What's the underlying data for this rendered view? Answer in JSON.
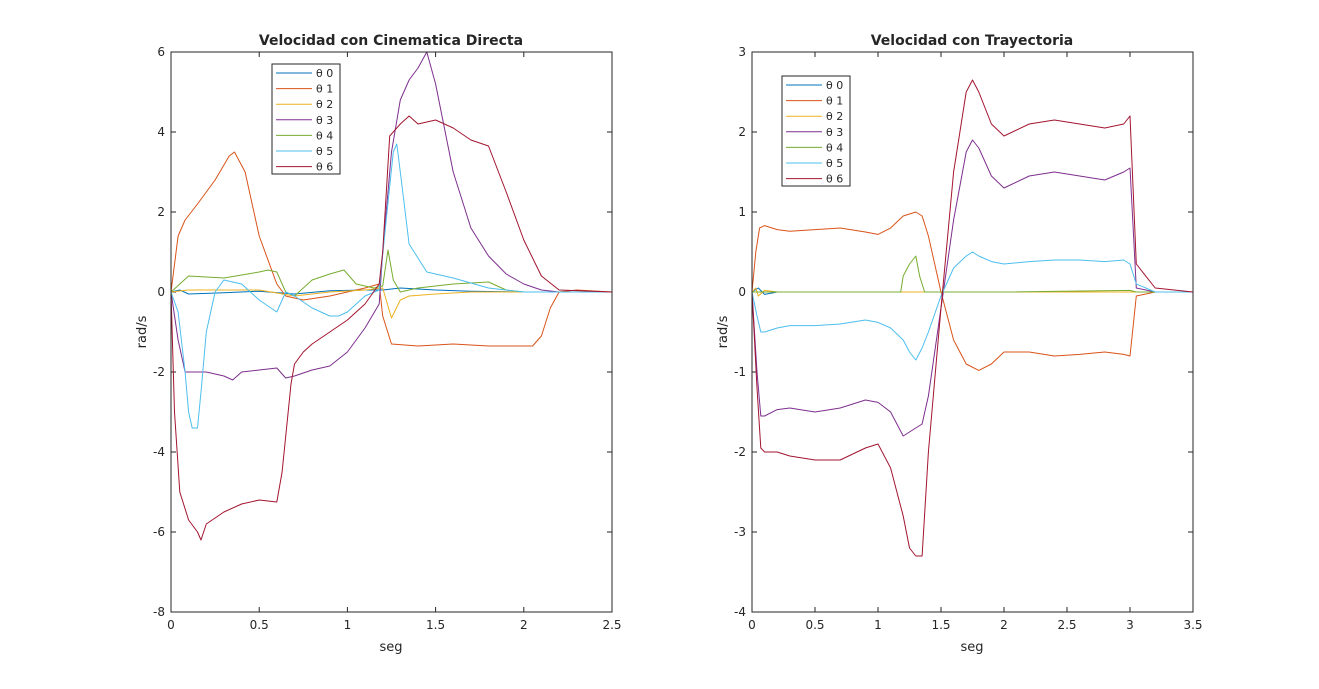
{
  "colors": {
    "theta0": "#0072BD",
    "theta1": "#D95319",
    "theta2": "#EDB120",
    "theta3": "#7E2F8E",
    "theta4": "#77AC30",
    "theta5": "#4DBEEE",
    "theta6": "#A2142F",
    "axis": "#262626",
    "background": "#ffffff"
  },
  "chart_data": [
    {
      "type": "line",
      "title": "Velocidad con Cinematica Directa",
      "xlabel": "seg",
      "ylabel": "rad/s",
      "xlim": [
        0,
        2.5
      ],
      "ylim": [
        -8,
        6
      ],
      "xticks": [
        0,
        0.5,
        1,
        1.5,
        2,
        2.5
      ],
      "xtick_labels": [
        "0",
        "0.5",
        "1",
        "1.5",
        "2",
        "2.5"
      ],
      "yticks": [
        -8,
        -6,
        -4,
        -2,
        0,
        2,
        4,
        6
      ],
      "ytick_labels": [
        "-8",
        "-6",
        "-4",
        "-2",
        "0",
        "2",
        "4",
        "6"
      ],
      "grid": false,
      "legend_placement": "upper-left-center",
      "series": [
        {
          "name": "θ 0",
          "color": "#0072BD",
          "x": [
            0,
            0.05,
            0.1,
            0.3,
            0.5,
            0.7,
            0.9,
            1.1,
            1.2,
            1.3,
            1.5,
            1.7,
            2.0,
            2.5
          ],
          "y": [
            0,
            0.05,
            -0.05,
            -0.02,
            0.02,
            -0.05,
            0.03,
            0.05,
            0.05,
            0.1,
            0.05,
            0.02,
            0,
            0
          ]
        },
        {
          "name": "θ 1",
          "color": "#D95319",
          "x": [
            0,
            0.04,
            0.08,
            0.15,
            0.25,
            0.33,
            0.36,
            0.42,
            0.5,
            0.6,
            0.65,
            0.75,
            0.9,
            1.1,
            1.18,
            1.2,
            1.25,
            1.4,
            1.6,
            1.8,
            2.0,
            2.05,
            2.1,
            2.15,
            2.2,
            2.3,
            2.5
          ],
          "y": [
            0,
            1.4,
            1.8,
            2.2,
            2.8,
            3.4,
            3.5,
            3.0,
            1.4,
            0.2,
            -0.1,
            -0.2,
            -0.1,
            0.1,
            0.2,
            -0.6,
            -1.3,
            -1.35,
            -1.3,
            -1.35,
            -1.35,
            -1.35,
            -1.1,
            -0.4,
            0,
            0.05,
            0
          ]
        },
        {
          "name": "θ 2",
          "color": "#EDB120",
          "x": [
            0,
            0.1,
            0.3,
            0.5,
            0.7,
            0.9,
            1.1,
            1.2,
            1.25,
            1.3,
            1.35,
            1.5,
            1.7,
            2.0,
            2.5
          ],
          "y": [
            0,
            0.05,
            0.05,
            0.05,
            -0.1,
            0.0,
            0.05,
            0.1,
            -0.65,
            -0.2,
            -0.1,
            -0.05,
            0,
            0,
            0
          ]
        },
        {
          "name": "θ 3",
          "color": "#7E2F8E",
          "x": [
            0,
            0.04,
            0.08,
            0.2,
            0.3,
            0.35,
            0.4,
            0.5,
            0.6,
            0.65,
            0.7,
            0.8,
            0.9,
            1.0,
            1.1,
            1.18,
            1.2,
            1.25,
            1.3,
            1.35,
            1.4,
            1.45,
            1.5,
            1.6,
            1.7,
            1.8,
            1.9,
            2.0,
            2.1,
            2.2,
            2.5
          ],
          "y": [
            0,
            -1.2,
            -2.0,
            -2.0,
            -2.1,
            -2.2,
            -2.0,
            -1.95,
            -1.9,
            -2.15,
            -2.1,
            -1.95,
            -1.85,
            -1.5,
            -0.9,
            -0.3,
            1.0,
            3.5,
            4.8,
            5.3,
            5.6,
            6.0,
            5.2,
            3.0,
            1.6,
            0.9,
            0.45,
            0.2,
            0.05,
            0,
            0
          ]
        },
        {
          "name": "θ 4",
          "color": "#77AC30",
          "x": [
            0,
            0.05,
            0.1,
            0.3,
            0.5,
            0.55,
            0.6,
            0.65,
            0.7,
            0.8,
            0.9,
            0.98,
            1.05,
            1.15,
            1.2,
            1.23,
            1.26,
            1.3,
            1.4,
            1.6,
            1.8,
            1.9,
            2.0,
            2.5
          ],
          "y": [
            0,
            0.2,
            0.4,
            0.35,
            0.5,
            0.55,
            0.5,
            0.0,
            -0.1,
            0.3,
            0.45,
            0.55,
            0.2,
            0.1,
            0.15,
            1.05,
            0.3,
            0.0,
            0.1,
            0.2,
            0.25,
            0.05,
            0,
            0
          ]
        },
        {
          "name": "θ 5",
          "color": "#4DBEEE",
          "x": [
            0,
            0.04,
            0.08,
            0.1,
            0.12,
            0.15,
            0.17,
            0.2,
            0.25,
            0.3,
            0.4,
            0.5,
            0.6,
            0.65,
            0.7,
            0.8,
            0.9,
            0.95,
            1.0,
            1.05,
            1.1,
            1.18,
            1.22,
            1.26,
            1.28,
            1.3,
            1.35,
            1.45,
            1.6,
            1.8,
            2.0,
            2.5
          ],
          "y": [
            0,
            -0.5,
            -2.0,
            -3.0,
            -3.4,
            -3.4,
            -2.5,
            -1.0,
            0.0,
            0.3,
            0.2,
            -0.2,
            -0.5,
            0.0,
            -0.1,
            -0.4,
            -0.6,
            -0.6,
            -0.5,
            -0.3,
            -0.1,
            0.05,
            1.8,
            3.5,
            3.7,
            3.0,
            1.2,
            0.5,
            0.35,
            0.1,
            0,
            0
          ]
        },
        {
          "name": "θ 6",
          "color": "#A2142F",
          "x": [
            0,
            0.02,
            0.05,
            0.1,
            0.15,
            0.17,
            0.2,
            0.3,
            0.4,
            0.5,
            0.6,
            0.63,
            0.68,
            0.7,
            0.75,
            0.8,
            0.9,
            1.0,
            1.1,
            1.18,
            1.2,
            1.24,
            1.3,
            1.35,
            1.4,
            1.5,
            1.6,
            1.7,
            1.8,
            1.9,
            2.0,
            2.1,
            2.2,
            2.5
          ],
          "y": [
            0,
            -3.0,
            -5.0,
            -5.7,
            -6.0,
            -6.2,
            -5.8,
            -5.5,
            -5.3,
            -5.2,
            -5.25,
            -4.5,
            -2.3,
            -1.8,
            -1.5,
            -1.3,
            -1.0,
            -0.7,
            -0.3,
            0.2,
            1.0,
            3.9,
            4.2,
            4.4,
            4.2,
            4.3,
            4.1,
            3.8,
            3.65,
            2.5,
            1.3,
            0.4,
            0.05,
            0
          ]
        }
      ]
    },
    {
      "type": "line",
      "title": "Velocidad con Trayectoria",
      "xlabel": "seg",
      "ylabel": "rad/s",
      "xlim": [
        0,
        3.5
      ],
      "ylim": [
        -4,
        3
      ],
      "xticks": [
        0,
        0.5,
        1,
        1.5,
        2,
        2.5,
        3,
        3.5
      ],
      "xtick_labels": [
        "0",
        "0.5",
        "1",
        "1.5",
        "2",
        "2.5",
        "3",
        "3.5"
      ],
      "yticks": [
        -4,
        -3,
        -2,
        -1,
        0,
        1,
        2,
        3
      ],
      "ytick_labels": [
        "-4",
        "-3",
        "-2",
        "-1",
        "0",
        "1",
        "2",
        "3"
      ],
      "grid": false,
      "legend_placement": "upper-left",
      "series": [
        {
          "name": "θ 0",
          "color": "#0072BD",
          "x": [
            0,
            0.05,
            0.1,
            0.2,
            1.0,
            2.0,
            3.0,
            3.5
          ],
          "y": [
            0,
            0.05,
            -0.03,
            0,
            0,
            0,
            0,
            0
          ]
        },
        {
          "name": "θ 1",
          "color": "#D95319",
          "x": [
            0,
            0.03,
            0.06,
            0.1,
            0.2,
            0.3,
            0.5,
            0.7,
            0.9,
            1.0,
            1.1,
            1.2,
            1.3,
            1.35,
            1.4,
            1.5,
            1.6,
            1.7,
            1.8,
            1.9,
            2.0,
            2.2,
            2.4,
            2.6,
            2.8,
            2.95,
            3.0,
            3.05,
            3.2,
            3.5
          ],
          "y": [
            0,
            0.5,
            0.8,
            0.83,
            0.78,
            0.76,
            0.78,
            0.8,
            0.75,
            0.72,
            0.8,
            0.95,
            1.0,
            0.95,
            0.7,
            0.0,
            -0.6,
            -0.9,
            -0.98,
            -0.9,
            -0.75,
            -0.75,
            -0.8,
            -0.78,
            -0.75,
            -0.78,
            -0.8,
            -0.05,
            0,
            0
          ]
        },
        {
          "name": "θ 2",
          "color": "#EDB120",
          "x": [
            0,
            0.03,
            0.05,
            0.1,
            0.2,
            1.0,
            2.0,
            3.0,
            3.5
          ],
          "y": [
            0,
            0.05,
            -0.05,
            0.02,
            0,
            0,
            0,
            0,
            0
          ]
        },
        {
          "name": "θ 3",
          "color": "#7E2F8E",
          "x": [
            0,
            0.04,
            0.07,
            0.1,
            0.2,
            0.3,
            0.5,
            0.7,
            0.9,
            1.0,
            1.1,
            1.2,
            1.25,
            1.3,
            1.35,
            1.4,
            1.5,
            1.6,
            1.7,
            1.75,
            1.8,
            1.9,
            2.0,
            2.2,
            2.4,
            2.6,
            2.8,
            2.95,
            3.0,
            3.05,
            3.2,
            3.5
          ],
          "y": [
            0,
            -1.0,
            -1.55,
            -1.55,
            -1.47,
            -1.45,
            -1.5,
            -1.45,
            -1.35,
            -1.38,
            -1.5,
            -1.8,
            -1.75,
            -1.7,
            -1.65,
            -1.3,
            -0.2,
            0.9,
            1.75,
            1.9,
            1.8,
            1.45,
            1.3,
            1.45,
            1.5,
            1.45,
            1.4,
            1.5,
            1.55,
            0.05,
            0,
            0
          ]
        },
        {
          "name": "θ 4",
          "color": "#77AC30",
          "x": [
            0,
            0.1,
            1.0,
            1.18,
            1.2,
            1.25,
            1.3,
            1.33,
            1.37,
            1.5,
            2.0,
            3.0,
            3.05,
            3.5
          ],
          "y": [
            0,
            0,
            0,
            0,
            0.2,
            0.35,
            0.45,
            0.2,
            0.0,
            0,
            0,
            0.02,
            0,
            0
          ]
        },
        {
          "name": "θ 5",
          "color": "#4DBEEE",
          "x": [
            0,
            0.04,
            0.07,
            0.1,
            0.2,
            0.3,
            0.5,
            0.7,
            0.9,
            1.0,
            1.1,
            1.2,
            1.25,
            1.3,
            1.35,
            1.4,
            1.5,
            1.6,
            1.7,
            1.75,
            1.8,
            1.9,
            2.0,
            2.2,
            2.4,
            2.6,
            2.8,
            2.95,
            3.0,
            3.05,
            3.2,
            3.5
          ],
          "y": [
            0,
            -0.3,
            -0.5,
            -0.5,
            -0.45,
            -0.42,
            -0.42,
            -0.4,
            -0.35,
            -0.38,
            -0.45,
            -0.6,
            -0.75,
            -0.85,
            -0.7,
            -0.5,
            -0.05,
            0.3,
            0.45,
            0.5,
            0.45,
            0.38,
            0.35,
            0.38,
            0.4,
            0.4,
            0.38,
            0.4,
            0.35,
            0.1,
            0,
            0
          ]
        },
        {
          "name": "θ 6",
          "color": "#A2142F",
          "x": [
            0,
            0.04,
            0.07,
            0.1,
            0.2,
            0.3,
            0.5,
            0.7,
            0.9,
            1.0,
            1.1,
            1.2,
            1.25,
            1.3,
            1.35,
            1.4,
            1.5,
            1.6,
            1.7,
            1.75,
            1.8,
            1.9,
            2.0,
            2.2,
            2.4,
            2.6,
            2.8,
            2.95,
            3.0,
            3.05,
            3.2,
            3.5
          ],
          "y": [
            0,
            -1.2,
            -1.95,
            -2.0,
            -2.0,
            -2.05,
            -2.1,
            -2.1,
            -1.95,
            -1.9,
            -2.2,
            -2.8,
            -3.2,
            -3.3,
            -3.3,
            -2.0,
            -0.2,
            1.5,
            2.5,
            2.65,
            2.5,
            2.1,
            1.95,
            2.1,
            2.15,
            2.1,
            2.05,
            2.1,
            2.2,
            0.35,
            0.05,
            0
          ]
        }
      ]
    }
  ]
}
